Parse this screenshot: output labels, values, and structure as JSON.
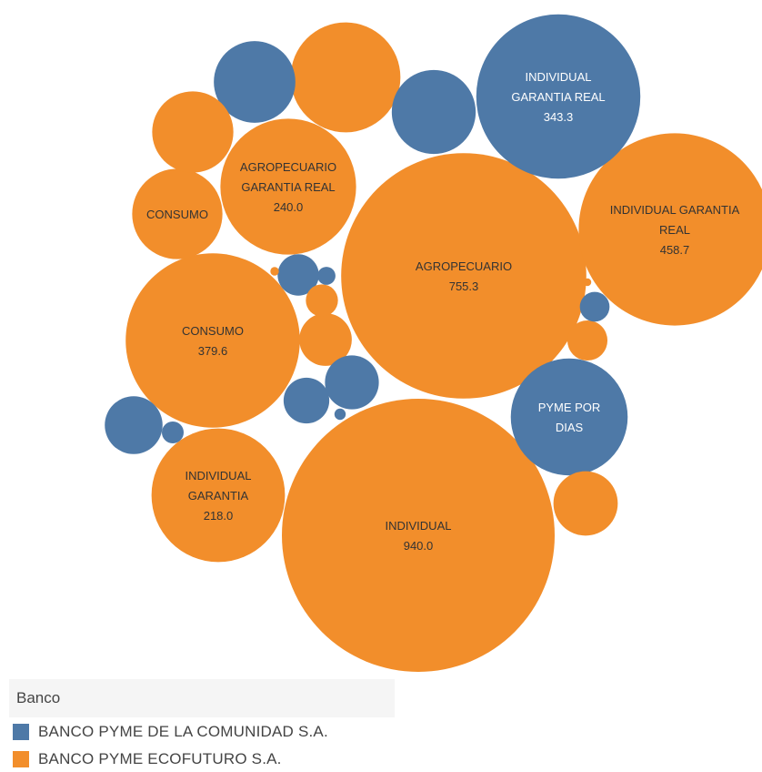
{
  "colors": {
    "comunidad": "#4e79a7",
    "ecofuturo": "#f28e2b",
    "label_dark": "#333333",
    "label_light": "#ffffff"
  },
  "legend": {
    "title": "Banco",
    "items": [
      {
        "key": "comunidad",
        "label": "BANCO PYME DE LA COMUNIDAD S.A."
      },
      {
        "key": "ecofuturo",
        "label": "BANCO PYME ECOFUTURO S.A."
      }
    ]
  },
  "chart_data": {
    "type": "bubble",
    "title": "",
    "series": [
      {
        "bank": "ecofuturo",
        "label": "INDIVIDUAL",
        "value": 940.0,
        "value_label": "940.0"
      },
      {
        "bank": "ecofuturo",
        "label": "AGROPECUARIO",
        "value": 755.3,
        "value_label": "755.3"
      },
      {
        "bank": "ecofuturo",
        "label": "INDIVIDUAL GARANTIA REAL",
        "value": 458.7,
        "value_label": "458.7"
      },
      {
        "bank": "ecofuturo",
        "label": "CONSUMO",
        "value": 379.6,
        "value_label": "379.6"
      },
      {
        "bank": "comunidad",
        "label": "INDIVIDUAL GARANTIA REAL",
        "value": 343.3,
        "value_label": "343.3"
      },
      {
        "bank": "ecofuturo",
        "label": "AGROPECUARIO GARANTIA REAL",
        "value": 240.0,
        "value_label": "240.0"
      },
      {
        "bank": "ecofuturo",
        "label": "INDIVIDUAL GARANTIA",
        "value": 218.0,
        "value_label": "218.0"
      },
      {
        "bank": "comunidad",
        "label": "PYME POR DIAS",
        "value": 196.0,
        "value_label": ""
      },
      {
        "bank": "ecofuturo",
        "label": "CONSUMO",
        "value": 116.0,
        "value_label": ""
      },
      {
        "bank": "ecofuturo",
        "label": "",
        "value": 175.0
      },
      {
        "bank": "comunidad",
        "label": "",
        "value": 105.0
      },
      {
        "bank": "comunidad",
        "label": "",
        "value": 90.0
      },
      {
        "bank": "ecofuturo",
        "label": "",
        "value": 95.0
      },
      {
        "bank": "ecofuturo",
        "label": "",
        "value": 60.0
      },
      {
        "bank": "comunidad",
        "label": "",
        "value": 46.0
      },
      {
        "bank": "ecofuturo",
        "label": "",
        "value": 49.0
      },
      {
        "bank": "comunidad",
        "label": "",
        "value": 35.0
      },
      {
        "bank": "comunidad",
        "label": "",
        "value": 31.0
      },
      {
        "bank": "comunidad",
        "label": "",
        "value": 24.0
      },
      {
        "bank": "ecofuturo",
        "label": "",
        "value": 24.0
      },
      {
        "bank": "ecofuturo",
        "label": "",
        "value": 18.0
      },
      {
        "bank": "comunidad",
        "label": "",
        "value": 12.0
      },
      {
        "bank": "comunidad",
        "label": "",
        "value": 6.0
      },
      {
        "bank": "comunidad",
        "label": "",
        "value": 4.0
      },
      {
        "bank": "comunidad",
        "label": "",
        "value": 1.8
      },
      {
        "bank": "ecofuturo",
        "label": "",
        "value": 1.5
      },
      {
        "bank": "ecofuturo",
        "label": "",
        "value": 0.9
      }
    ]
  }
}
